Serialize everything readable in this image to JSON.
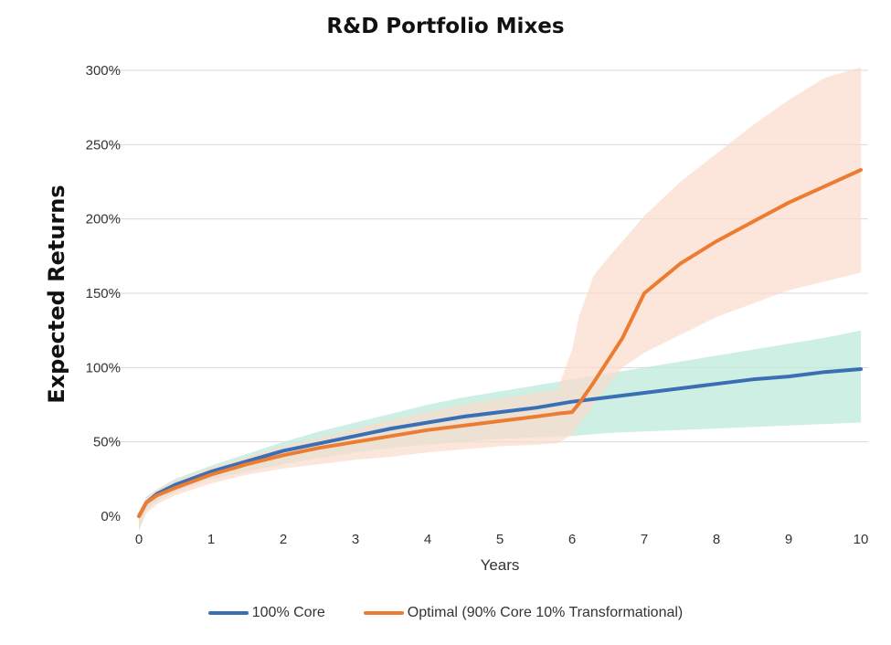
{
  "chart_data": {
    "type": "line",
    "title": "R&D Portfolio Mixes",
    "xlabel": "Years",
    "ylabel": "Expected Returns",
    "xlim": [
      0,
      10
    ],
    "ylim": [
      0,
      300
    ],
    "x_ticks": [
      "0",
      "1",
      "2",
      "3",
      "4",
      "5",
      "6",
      "7",
      "8",
      "9",
      "10"
    ],
    "y_ticks": [
      "0%",
      "50%",
      "100%",
      "150%",
      "200%",
      "250%",
      "300%"
    ],
    "grid": "horizontal",
    "legend_position": "bottom",
    "series": [
      {
        "name": "100% Core",
        "color": "#3a6fb5",
        "x": [
          0,
          0.1,
          0.25,
          0.5,
          1,
          1.5,
          2,
          2.5,
          3,
          3.5,
          4,
          4.5,
          5,
          5.5,
          6,
          6.5,
          7,
          7.5,
          8,
          8.5,
          9,
          9.5,
          10
        ],
        "values": [
          0,
          9,
          15,
          21,
          30,
          37,
          44,
          49,
          54,
          59,
          63,
          67,
          70,
          73,
          77,
          80,
          83,
          86,
          89,
          92,
          94,
          97,
          99
        ],
        "band": {
          "color": "#bde9d9",
          "lower": [
            -10,
            4,
            10,
            16,
            25,
            30,
            35,
            39,
            43,
            46,
            48,
            50,
            52,
            53,
            54,
            56,
            57,
            58,
            59,
            60,
            61,
            62,
            63
          ],
          "upper": [
            0,
            13,
            18,
            25,
            34,
            42,
            50,
            57,
            63,
            69,
            75,
            80,
            84,
            88,
            92,
            96,
            100,
            104,
            108,
            112,
            116,
            120,
            125
          ]
        }
      },
      {
        "name": "Optimal (90% Core 10% Transformational)",
        "color": "#ec7c31",
        "x": [
          0,
          0.1,
          0.25,
          0.5,
          1,
          1.5,
          2,
          2.5,
          3,
          3.5,
          4,
          4.5,
          5,
          5.5,
          5.8,
          6.0,
          6.1,
          6.3,
          6.5,
          6.7,
          7,
          7.25,
          7.5,
          8,
          8.5,
          9,
          9.5,
          10
        ],
        "values": [
          0,
          9,
          14,
          19,
          28,
          35,
          41,
          46,
          50,
          54,
          58,
          61,
          64,
          67,
          69,
          70,
          76,
          90,
          105,
          120,
          150,
          160,
          170,
          185,
          198,
          211,
          222,
          233
        ],
        "band": {
          "color": "#fbdccc",
          "x": [
            0,
            0.1,
            0.25,
            0.5,
            1,
            1.5,
            2,
            2.5,
            3,
            3.5,
            4,
            4.5,
            5,
            5.5,
            5.8,
            6.0,
            6.1,
            6.3,
            6.5,
            6.7,
            7,
            7.5,
            8,
            8.5,
            9,
            9.5,
            10
          ],
          "lower": [
            -10,
            2,
            8,
            14,
            22,
            28,
            32,
            35,
            38,
            40,
            43,
            45,
            47,
            48,
            49,
            55,
            62,
            75,
            88,
            100,
            110,
            122,
            134,
            143,
            152,
            158,
            164
          ],
          "upper": [
            0,
            12,
            18,
            24,
            33,
            40,
            47,
            53,
            59,
            65,
            70,
            75,
            79,
            83,
            85,
            112,
            135,
            162,
            174,
            185,
            202,
            225,
            244,
            263,
            280,
            295,
            302
          ]
        }
      }
    ]
  }
}
